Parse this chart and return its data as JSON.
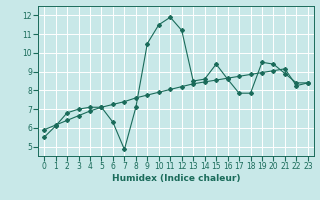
{
  "xlabel": "Humidex (Indice chaleur)",
  "bg_color": "#c8e8e8",
  "line_color": "#1a6b5a",
  "grid_color": "#ffffff",
  "xlim": [
    -0.5,
    23.5
  ],
  "ylim": [
    4.5,
    12.5
  ],
  "xticks": [
    0,
    1,
    2,
    3,
    4,
    5,
    6,
    7,
    8,
    9,
    10,
    11,
    12,
    13,
    14,
    15,
    16,
    17,
    18,
    19,
    20,
    21,
    22,
    23
  ],
  "yticks": [
    5,
    6,
    7,
    8,
    9,
    10,
    11,
    12
  ],
  "series1_x": [
    0,
    1,
    2,
    3,
    4,
    5,
    6,
    7,
    8,
    9,
    10,
    11,
    12,
    13,
    14,
    15,
    16,
    17,
    18,
    19,
    20,
    21,
    22,
    23
  ],
  "series1_y": [
    5.5,
    6.1,
    6.8,
    7.0,
    7.1,
    7.1,
    6.3,
    4.85,
    7.1,
    10.5,
    11.5,
    11.9,
    11.2,
    8.5,
    8.6,
    9.4,
    8.6,
    7.85,
    7.85,
    9.5,
    9.4,
    8.9,
    8.4,
    8.4
  ],
  "series2_x": [
    0,
    1,
    2,
    3,
    4,
    5,
    6,
    7,
    8,
    9,
    10,
    11,
    12,
    13,
    14,
    15,
    16,
    17,
    18,
    19,
    20,
    21,
    22,
    23
  ],
  "series2_y": [
    5.9,
    6.15,
    6.4,
    6.65,
    6.9,
    7.1,
    7.25,
    7.4,
    7.6,
    7.75,
    7.9,
    8.05,
    8.2,
    8.35,
    8.45,
    8.55,
    8.65,
    8.75,
    8.85,
    8.95,
    9.05,
    9.15,
    8.25,
    8.4
  ]
}
